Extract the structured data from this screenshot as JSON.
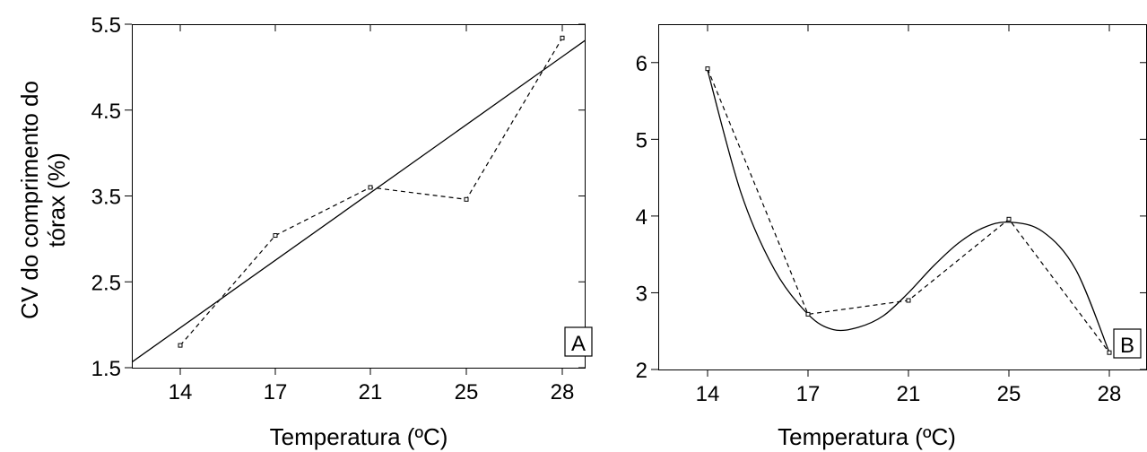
{
  "y_axis_label_line1": "CV do comprimento do",
  "y_axis_label_line2": "tórax (%)",
  "chart_data": [
    {
      "type": "line",
      "panel_label": "A",
      "xlabel": "Temperatura (ºC)",
      "ylabel": "CV do comprimento do tórax (%)",
      "x_tick_labels": [
        "14",
        "17",
        "21",
        "25",
        "28"
      ],
      "y_tick_labels": [
        "1.5",
        "2.5",
        "3.5",
        "4.5",
        "5.5"
      ],
      "ylim": [
        1.5,
        5.5
      ],
      "x": [
        14,
        17,
        21,
        25,
        28
      ],
      "observed": [
        1.76,
        3.04,
        3.6,
        3.46,
        5.34
      ],
      "fit": {
        "kind": "linear",
        "x": [
          12.5,
          30
        ],
        "y": [
          1.55,
          5.33
        ]
      },
      "grid": false
    },
    {
      "type": "line",
      "panel_label": "B",
      "xlabel": "Temperatura (ºC)",
      "ylabel": "",
      "x_tick_labels": [
        "14",
        "17",
        "21",
        "25",
        "28"
      ],
      "y_tick_labels": [
        "2",
        "3",
        "4",
        "5",
        "6"
      ],
      "ylim": [
        2,
        6.5
      ],
      "x": [
        14,
        17,
        21,
        25,
        28
      ],
      "observed": [
        5.92,
        2.72,
        2.9,
        3.96,
        2.22
      ],
      "fit": {
        "kind": "smooth",
        "x": [
          14,
          15,
          16,
          17,
          18,
          19,
          20,
          21,
          22,
          23,
          24,
          25,
          26,
          27,
          28
        ],
        "y": [
          5.9,
          4.3,
          3.3,
          2.72,
          2.52,
          2.55,
          2.7,
          3.0,
          3.35,
          3.65,
          3.85,
          3.92,
          3.8,
          3.3,
          2.22
        ]
      },
      "grid": false
    }
  ]
}
